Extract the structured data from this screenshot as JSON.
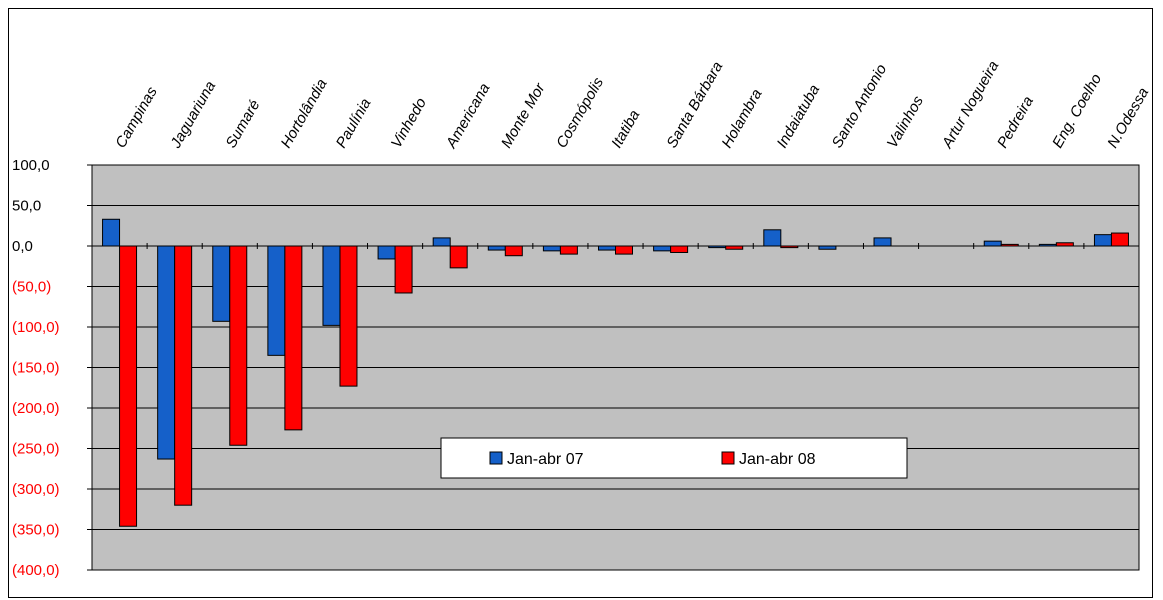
{
  "chart_data": {
    "type": "bar",
    "title": "",
    "xlabel": "",
    "ylabel": "",
    "ylim": [
      -400,
      100
    ],
    "yticks": [
      100,
      50,
      0,
      -50,
      -100,
      -150,
      -200,
      -250,
      -300,
      -350,
      -400
    ],
    "ytick_labels": [
      "100,0",
      "50,0",
      "0,0",
      "(50,0)",
      "(100,0)",
      "(150,0)",
      "(200,0)",
      "(250,0)",
      "(300,0)",
      "(350,0)",
      "(400,0)"
    ],
    "categories": [
      "Campinas",
      "Jaguariuna",
      "Sumaré",
      "Hortolândia",
      "Paulínia",
      "Vinhedo",
      "Americana",
      "Monte Mor",
      "Cosmópolis",
      "Itatiba",
      "Santa Bárbara",
      "Holambra",
      "Indaiatuba",
      "Santo Antonio",
      "Valinhos",
      "Artur Nogueira",
      "Pedreira",
      "Eng. Coelho",
      "N.Odessa"
    ],
    "series": [
      {
        "name": "Jan-abr 07",
        "color": "#1560c9",
        "values": [
          33,
          -263,
          -93,
          -135,
          -98,
          -16,
          10,
          -5,
          -6,
          -5,
          -6,
          -2,
          20,
          -4,
          10,
          0,
          6,
          2,
          14
        ]
      },
      {
        "name": "Jan-abr 08",
        "color": "#ff0000",
        "values": [
          -346,
          -320,
          -246,
          -227,
          -173,
          -58,
          -27,
          -12,
          -10,
          -10,
          -8,
          -4,
          -2,
          0,
          0,
          0,
          2,
          4,
          16
        ]
      }
    ],
    "plot_background": "#c0c0c0",
    "negative_tick_color": "#ff0000",
    "positive_tick_color": "#000000",
    "grid": true,
    "legend_position": "center-bottom"
  }
}
